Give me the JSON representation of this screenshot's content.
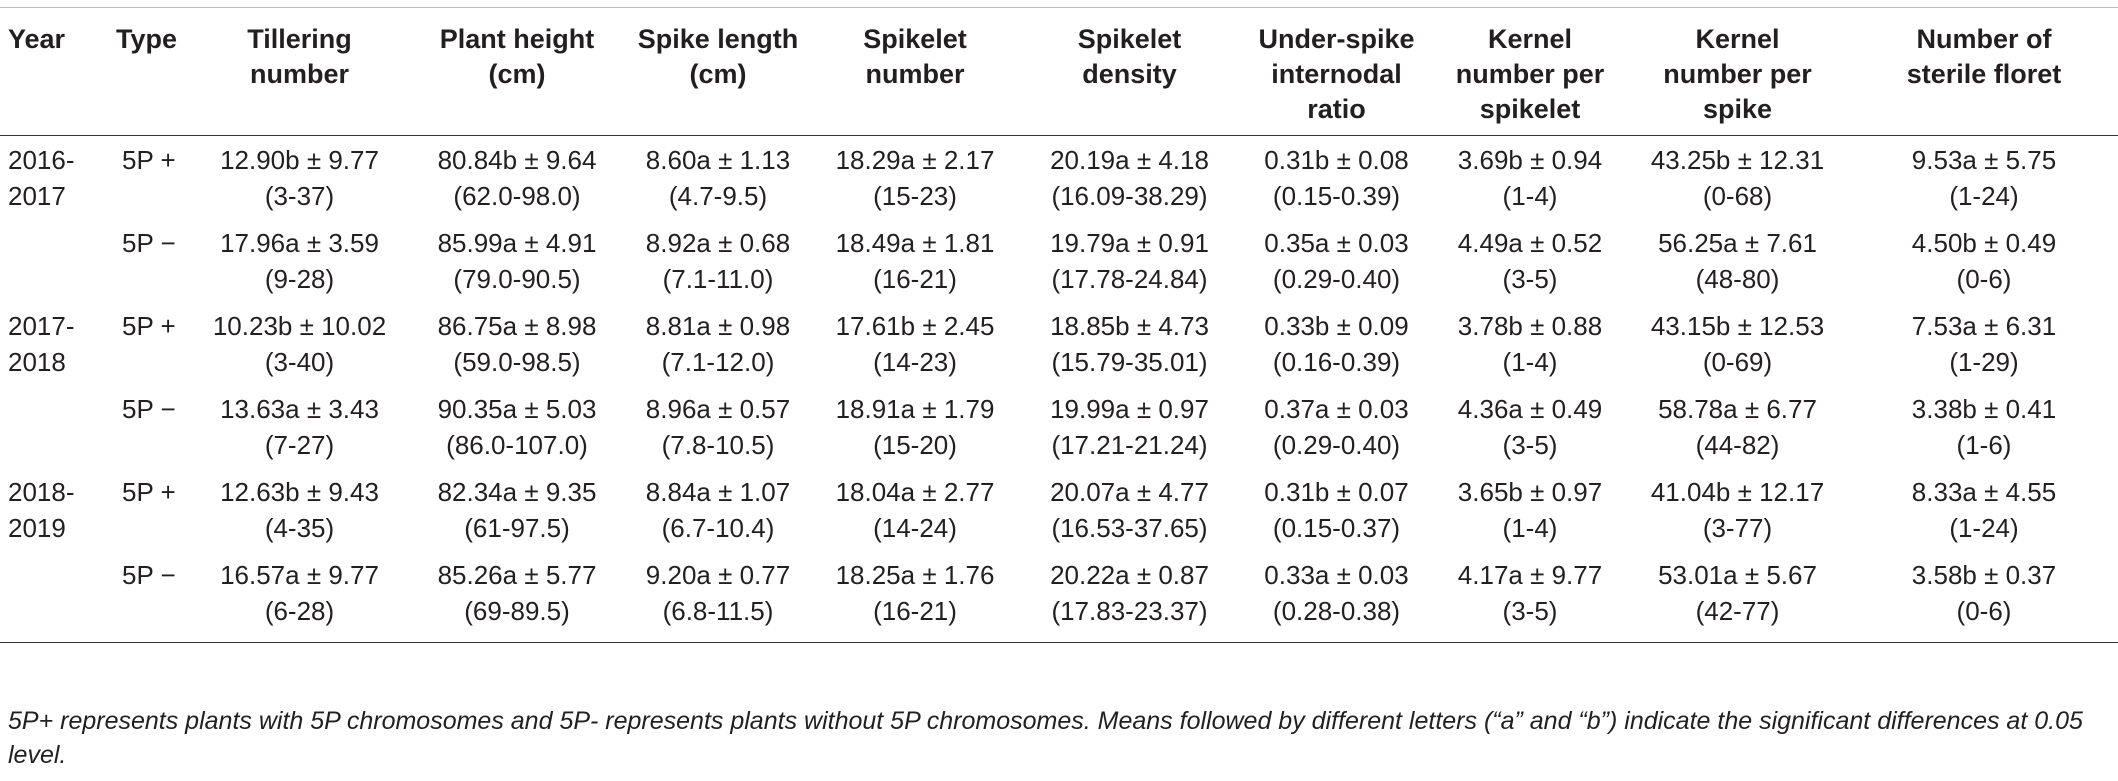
{
  "table": {
    "headers": [
      {
        "line1": "Year",
        "line2": "",
        "line3": ""
      },
      {
        "line1": "Type",
        "line2": "",
        "line3": ""
      },
      {
        "line1": "Tillering",
        "line2": "number",
        "line3": ""
      },
      {
        "line1": "Plant height",
        "line2": "(cm)",
        "line3": ""
      },
      {
        "line1": "Spike length",
        "line2": "(cm)",
        "line3": ""
      },
      {
        "line1": "Spikelet",
        "line2": "number",
        "line3": ""
      },
      {
        "line1": "Spikelet",
        "line2": "density",
        "line3": ""
      },
      {
        "line1": "Under-spike",
        "line2": "internodal",
        "line3": "ratio"
      },
      {
        "line1": "Kernel",
        "line2": "number per",
        "line3": "spikelet"
      },
      {
        "line1": "Kernel",
        "line2": "number per",
        "line3": "spike"
      },
      {
        "line1": "Number of",
        "line2": "sterile floret",
        "line3": ""
      }
    ],
    "rows": [
      {
        "year": "2016-2017",
        "type": "5P +",
        "cells": [
          {
            "mean": "12.90b ± 9.77",
            "range": "(3-37)"
          },
          {
            "mean": "80.84b ± 9.64",
            "range": "(62.0-98.0)"
          },
          {
            "mean": "8.60a ± 1.13",
            "range": "(4.7-9.5)"
          },
          {
            "mean": "18.29a ± 2.17",
            "range": "(15-23)"
          },
          {
            "mean": "20.19a ± 4.18",
            "range": "(16.09-38.29)"
          },
          {
            "mean": "0.31b ± 0.08",
            "range": "(0.15-0.39)"
          },
          {
            "mean": "3.69b ± 0.94",
            "range": "(1-4)"
          },
          {
            "mean": "43.25b ± 12.31",
            "range": "(0-68)"
          },
          {
            "mean": "9.53a ± 5.75",
            "range": "(1-24)"
          }
        ]
      },
      {
        "year": "",
        "type": "5P −",
        "cells": [
          {
            "mean": "17.96a ± 3.59",
            "range": "(9-28)"
          },
          {
            "mean": "85.99a ± 4.91",
            "range": "(79.0-90.5)"
          },
          {
            "mean": "8.92a ± 0.68",
            "range": "(7.1-11.0)"
          },
          {
            "mean": "18.49a ± 1.81",
            "range": "(16-21)"
          },
          {
            "mean": "19.79a ± 0.91",
            "range": "(17.78-24.84)"
          },
          {
            "mean": "0.35a ± 0.03",
            "range": "(0.29-0.40)"
          },
          {
            "mean": "4.49a ± 0.52",
            "range": "(3-5)"
          },
          {
            "mean": "56.25a ± 7.61",
            "range": "(48-80)"
          },
          {
            "mean": "4.50b ± 0.49",
            "range": "(0-6)"
          }
        ]
      },
      {
        "year": "2017-2018",
        "type": "5P +",
        "cells": [
          {
            "mean": "10.23b ± 10.02",
            "range": "(3-40)"
          },
          {
            "mean": "86.75a ± 8.98",
            "range": "(59.0-98.5)"
          },
          {
            "mean": "8.81a ± 0.98",
            "range": "(7.1-12.0)"
          },
          {
            "mean": "17.61b ± 2.45",
            "range": "(14-23)"
          },
          {
            "mean": "18.85b ± 4.73",
            "range": "(15.79-35.01)"
          },
          {
            "mean": "0.33b ± 0.09",
            "range": "(0.16-0.39)"
          },
          {
            "mean": "3.78b ± 0.88",
            "range": "(1-4)"
          },
          {
            "mean": "43.15b ± 12.53",
            "range": "(0-69)"
          },
          {
            "mean": "7.53a ± 6.31",
            "range": "(1-29)"
          }
        ]
      },
      {
        "year": "",
        "type": "5P −",
        "cells": [
          {
            "mean": "13.63a ± 3.43",
            "range": "(7-27)"
          },
          {
            "mean": "90.35a ± 5.03",
            "range": "(86.0-107.0)"
          },
          {
            "mean": "8.96a ± 0.57",
            "range": "(7.8-10.5)"
          },
          {
            "mean": "18.91a ± 1.79",
            "range": "(15-20)"
          },
          {
            "mean": "19.99a ± 0.97",
            "range": "(17.21-21.24)"
          },
          {
            "mean": "0.37a ± 0.03",
            "range": "(0.29-0.40)"
          },
          {
            "mean": "4.36a ± 0.49",
            "range": "(3-5)"
          },
          {
            "mean": "58.78a ± 6.77",
            "range": "(44-82)"
          },
          {
            "mean": "3.38b ± 0.41",
            "range": "(1-6)"
          }
        ]
      },
      {
        "year": "2018-2019",
        "type": "5P +",
        "cells": [
          {
            "mean": "12.63b ± 9.43",
            "range": "(4-35)"
          },
          {
            "mean": "82.34a ± 9.35",
            "range": "(61-97.5)"
          },
          {
            "mean": "8.84a ± 1.07",
            "range": "(6.7-10.4)"
          },
          {
            "mean": "18.04a ± 2.77",
            "range": "(14-24)"
          },
          {
            "mean": "20.07a ± 4.77",
            "range": "(16.53-37.65)"
          },
          {
            "mean": "0.31b ± 0.07",
            "range": "(0.15-0.37)"
          },
          {
            "mean": "3.65b ± 0.97",
            "range": "(1-4)"
          },
          {
            "mean": "41.04b ± 12.17",
            "range": "(3-77)"
          },
          {
            "mean": "8.33a ± 4.55",
            "range": "(1-24)"
          }
        ]
      },
      {
        "year": "",
        "type": "5P −",
        "cells": [
          {
            "mean": "16.57a ± 9.77",
            "range": "(6-28)"
          },
          {
            "mean": "85.26a ± 5.77",
            "range": "(69-89.5)"
          },
          {
            "mean": "9.20a ± 0.77",
            "range": "(6.8-11.5)"
          },
          {
            "mean": "18.25a ± 1.76",
            "range": "(16-21)"
          },
          {
            "mean": "20.22a ± 0.87",
            "range": "(17.83-23.37)"
          },
          {
            "mean": "0.33a ± 0.03",
            "range": "(0.28-0.38)"
          },
          {
            "mean": "4.17a ± 9.77",
            "range": "(3-5)"
          },
          {
            "mean": "53.01a ± 5.67",
            "range": "(42-77)"
          },
          {
            "mean": "3.58b ± 0.37",
            "range": "(0-6)"
          }
        ]
      }
    ]
  },
  "footnote": "5P+ represents plants with 5P chromosomes and 5P- represents plants without 5P chromosomes. Means followed by different letters (“a” and “b”) indicate the significant differences at 0.05 level."
}
